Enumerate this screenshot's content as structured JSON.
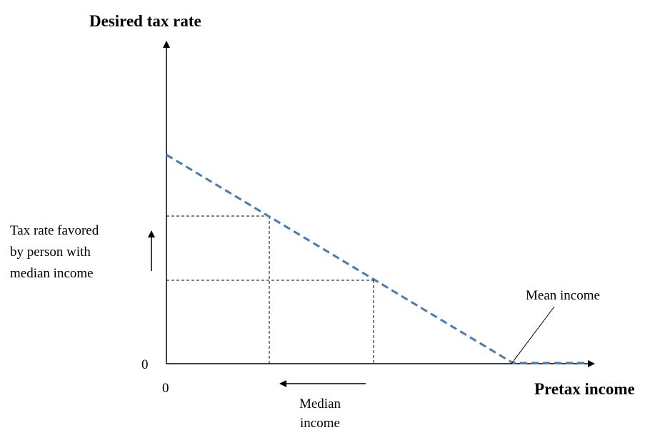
{
  "axes": {
    "y_label": "Desired tax rate",
    "x_label": "Pretax income",
    "y_origin_label": "0",
    "x_origin_label": "0"
  },
  "annotations": {
    "median_tax_rate": {
      "lines": [
        "Tax rate favored",
        "by person with",
        "median income"
      ]
    },
    "mean_income": {
      "label": "Mean income"
    },
    "median_income": {
      "lines": [
        "Median",
        "income"
      ]
    }
  }
}
